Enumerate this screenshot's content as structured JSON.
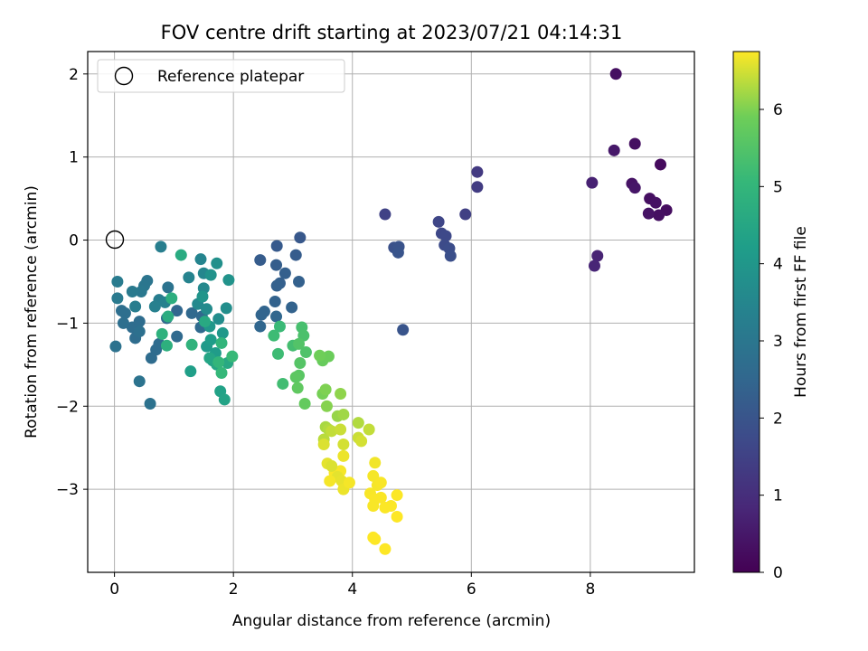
{
  "chart_data": {
    "type": "scatter",
    "title": "FOV centre drift starting at 2023/07/21 04:14:31",
    "xlabel": "Angular distance from reference (arcmin)",
    "ylabel": "Rotation from reference (arcmin)",
    "xlim": [
      -0.45,
      9.75
    ],
    "ylim": [
      -4.0,
      2.27
    ],
    "xticks": [
      0,
      2,
      4,
      6,
      8
    ],
    "yticks": [
      -3,
      -2,
      -1,
      0,
      1,
      2
    ],
    "grid": true,
    "colormap": "viridis",
    "colorbar": {
      "label": "Hours from first FF file",
      "range": [
        0,
        6.75
      ],
      "ticks": [
        0,
        1,
        2,
        3,
        4,
        5,
        6
      ]
    },
    "legend": {
      "placement": "top-left",
      "entries": [
        "Reference platepar"
      ]
    },
    "reference_point": {
      "x": 0,
      "y": 0
    },
    "points": [
      [
        8.43,
        2.0,
        0.3
      ],
      [
        8.75,
        1.16,
        0.3
      ],
      [
        8.4,
        1.08,
        0.5
      ],
      [
        9.18,
        0.91,
        0.2
      ],
      [
        8.03,
        0.69,
        0.7
      ],
      [
        8.7,
        0.68,
        0.4
      ],
      [
        8.75,
        0.63,
        0.45
      ],
      [
        9.0,
        0.5,
        0.3
      ],
      [
        9.1,
        0.45,
        0.35
      ],
      [
        9.28,
        0.36,
        0.25
      ],
      [
        9.15,
        0.3,
        0.3
      ],
      [
        8.98,
        0.32,
        0.4
      ],
      [
        8.12,
        -0.19,
        0.75
      ],
      [
        8.07,
        -0.31,
        0.8
      ],
      [
        6.1,
        0.82,
        1.3
      ],
      [
        6.1,
        0.64,
        1.35
      ],
      [
        5.9,
        0.31,
        1.45
      ],
      [
        4.55,
        0.31,
        1.5
      ],
      [
        5.45,
        0.22,
        1.6
      ],
      [
        5.5,
        0.08,
        1.65
      ],
      [
        5.57,
        0.05,
        1.7
      ],
      [
        5.55,
        -0.06,
        1.75
      ],
      [
        5.63,
        -0.1,
        1.8
      ],
      [
        5.65,
        -0.19,
        1.85
      ],
      [
        4.7,
        -0.09,
        1.9
      ],
      [
        4.78,
        -0.08,
        1.95
      ],
      [
        4.77,
        -0.15,
        2.0
      ],
      [
        4.85,
        -1.08,
        2.0
      ],
      [
        3.12,
        0.03,
        2.1
      ],
      [
        2.73,
        -0.07,
        2.15
      ],
      [
        3.05,
        -0.18,
        2.2
      ],
      [
        2.45,
        -0.24,
        2.2
      ],
      [
        2.72,
        -0.3,
        2.25
      ],
      [
        2.87,
        -0.4,
        2.3
      ],
      [
        2.78,
        -0.52,
        2.3
      ],
      [
        2.73,
        -0.55,
        2.35
      ],
      [
        3.1,
        -0.5,
        2.35
      ],
      [
        2.7,
        -0.74,
        2.4
      ],
      [
        2.98,
        -0.81,
        2.4
      ],
      [
        2.52,
        -0.86,
        2.45
      ],
      [
        2.47,
        -0.9,
        2.45
      ],
      [
        2.72,
        -0.92,
        2.5
      ],
      [
        2.45,
        -1.04,
        2.5
      ],
      [
        1.05,
        -0.85,
        2.5
      ],
      [
        1.3,
        -0.88,
        2.55
      ],
      [
        1.47,
        -0.92,
        2.55
      ],
      [
        0.88,
        -0.94,
        2.6
      ],
      [
        1.45,
        -1.05,
        2.6
      ],
      [
        1.05,
        -1.16,
        2.6
      ],
      [
        0.75,
        -1.25,
        2.65
      ],
      [
        0.7,
        -1.32,
        2.65
      ],
      [
        0.62,
        -1.42,
        2.65
      ],
      [
        0.3,
        -1.05,
        2.7
      ],
      [
        0.35,
        -1.18,
        2.7
      ],
      [
        0.42,
        -0.98,
        2.7
      ],
      [
        0.18,
        -0.88,
        2.75
      ],
      [
        0.12,
        -0.85,
        2.75
      ],
      [
        0.15,
        -1.0,
        2.75
      ],
      [
        0.42,
        -1.1,
        2.8
      ],
      [
        0.02,
        -1.28,
        2.85
      ],
      [
        0.6,
        -1.97,
        2.85
      ],
      [
        0.42,
        -1.7,
        2.9
      ],
      [
        0.9,
        -0.57,
        2.9
      ],
      [
        0.55,
        -0.49,
        2.95
      ],
      [
        0.5,
        -0.55,
        3.0
      ],
      [
        0.45,
        -0.62,
        3.05
      ],
      [
        0.3,
        -0.62,
        3.1
      ],
      [
        0.05,
        -0.7,
        3.1
      ],
      [
        0.05,
        -0.5,
        3.15
      ],
      [
        0.35,
        -0.8,
        3.2
      ],
      [
        0.75,
        -0.72,
        3.2
      ],
      [
        0.78,
        -0.08,
        3.25
      ],
      [
        0.68,
        -0.8,
        3.3
      ],
      [
        0.85,
        -0.75,
        3.35
      ],
      [
        1.25,
        -0.45,
        3.4
      ],
      [
        1.45,
        -0.23,
        3.45
      ],
      [
        1.5,
        -0.4,
        3.5
      ],
      [
        1.5,
        -0.58,
        3.55
      ],
      [
        1.4,
        -0.77,
        3.6
      ],
      [
        1.55,
        -0.83,
        3.65
      ],
      [
        1.75,
        -0.95,
        3.7
      ],
      [
        1.88,
        -0.82,
        3.75
      ],
      [
        1.72,
        -0.28,
        3.8
      ],
      [
        1.62,
        -0.42,
        3.85
      ],
      [
        1.92,
        -0.48,
        3.9
      ],
      [
        1.48,
        -0.68,
        3.95
      ],
      [
        1.6,
        -1.04,
        4.0
      ],
      [
        1.82,
        -1.12,
        4.05
      ],
      [
        1.55,
        -1.28,
        4.1
      ],
      [
        1.7,
        -1.36,
        4.15
      ],
      [
        1.62,
        -1.2,
        4.2
      ],
      [
        1.28,
        -1.58,
        4.25
      ],
      [
        1.65,
        -1.45,
        4.3
      ],
      [
        1.78,
        -1.82,
        4.35
      ],
      [
        1.85,
        -1.92,
        4.4
      ],
      [
        1.6,
        -1.42,
        4.45
      ],
      [
        1.72,
        -1.5,
        4.5
      ],
      [
        1.9,
        -1.48,
        4.55
      ],
      [
        1.52,
        -0.98,
        4.6
      ],
      [
        1.12,
        -0.18,
        4.65
      ],
      [
        0.9,
        -0.92,
        4.7
      ],
      [
        0.96,
        -0.7,
        4.75
      ],
      [
        0.88,
        -1.27,
        4.8
      ],
      [
        0.8,
        -1.13,
        4.85
      ],
      [
        1.3,
        -1.26,
        4.9
      ],
      [
        1.8,
        -1.24,
        4.95
      ],
      [
        1.75,
        -1.47,
        5.0
      ],
      [
        1.8,
        -1.6,
        5.05
      ],
      [
        1.98,
        -1.4,
        5.1
      ],
      [
        2.78,
        -1.04,
        5.15
      ],
      [
        2.68,
        -1.15,
        5.2
      ],
      [
        2.75,
        -1.37,
        5.2
      ],
      [
        2.83,
        -1.73,
        5.25
      ],
      [
        3.0,
        -1.27,
        5.3
      ],
      [
        3.15,
        -1.05,
        5.35
      ],
      [
        3.18,
        -1.15,
        5.4
      ],
      [
        3.22,
        -1.35,
        5.45
      ],
      [
        3.1,
        -1.25,
        5.5
      ],
      [
        3.12,
        -1.48,
        5.55
      ],
      [
        3.1,
        -1.63,
        5.6
      ],
      [
        3.05,
        -1.65,
        5.65
      ],
      [
        3.08,
        -1.78,
        5.7
      ],
      [
        3.2,
        -1.97,
        5.75
      ],
      [
        3.5,
        -1.45,
        5.8
      ],
      [
        3.6,
        -1.4,
        5.85
      ],
      [
        3.45,
        -1.39,
        5.9
      ],
      [
        3.5,
        -1.85,
        5.95
      ],
      [
        3.55,
        -1.8,
        6.0
      ],
      [
        3.57,
        -2.0,
        6.05
      ],
      [
        3.8,
        -1.85,
        6.1
      ],
      [
        3.75,
        -2.12,
        6.15
      ],
      [
        3.85,
        -2.1,
        6.2
      ],
      [
        3.55,
        -2.25,
        6.25
      ],
      [
        3.6,
        -2.28,
        6.3
      ],
      [
        3.52,
        -2.4,
        6.35
      ],
      [
        3.65,
        -2.3,
        6.4
      ],
      [
        3.8,
        -2.28,
        6.45
      ],
      [
        3.85,
        -2.46,
        6.5
      ],
      [
        3.52,
        -2.46,
        6.55
      ],
      [
        3.58,
        -2.69,
        6.6
      ],
      [
        3.85,
        -2.6,
        6.65
      ],
      [
        3.8,
        -2.78,
        6.7
      ],
      [
        3.7,
        -2.8,
        6.72
      ],
      [
        4.1,
        -2.2,
        6.3
      ],
      [
        4.28,
        -2.28,
        6.4
      ],
      [
        4.1,
        -2.38,
        6.45
      ],
      [
        4.15,
        -2.42,
        6.5
      ],
      [
        3.65,
        -2.72,
        6.55
      ],
      [
        3.75,
        -2.85,
        6.6
      ],
      [
        3.82,
        -2.9,
        6.62
      ],
      [
        3.85,
        -3.0,
        6.65
      ],
      [
        3.95,
        -2.92,
        6.7
      ],
      [
        3.62,
        -2.9,
        6.7
      ],
      [
        4.38,
        -2.68,
        6.68
      ],
      [
        4.35,
        -2.84,
        6.7
      ],
      [
        4.42,
        -2.95,
        6.7
      ],
      [
        4.48,
        -2.92,
        6.72
      ],
      [
        4.3,
        -3.05,
        6.72
      ],
      [
        4.38,
        -3.12,
        6.73
      ],
      [
        4.48,
        -3.1,
        6.73
      ],
      [
        4.55,
        -3.22,
        6.74
      ],
      [
        4.65,
        -3.2,
        6.74
      ],
      [
        4.75,
        -3.07,
        6.74
      ],
      [
        4.75,
        -3.33,
        6.75
      ],
      [
        4.35,
        -3.58,
        6.75
      ],
      [
        4.38,
        -3.6,
        6.75
      ],
      [
        4.55,
        -3.72,
        6.75
      ],
      [
        4.35,
        -3.2,
        6.72
      ]
    ]
  }
}
